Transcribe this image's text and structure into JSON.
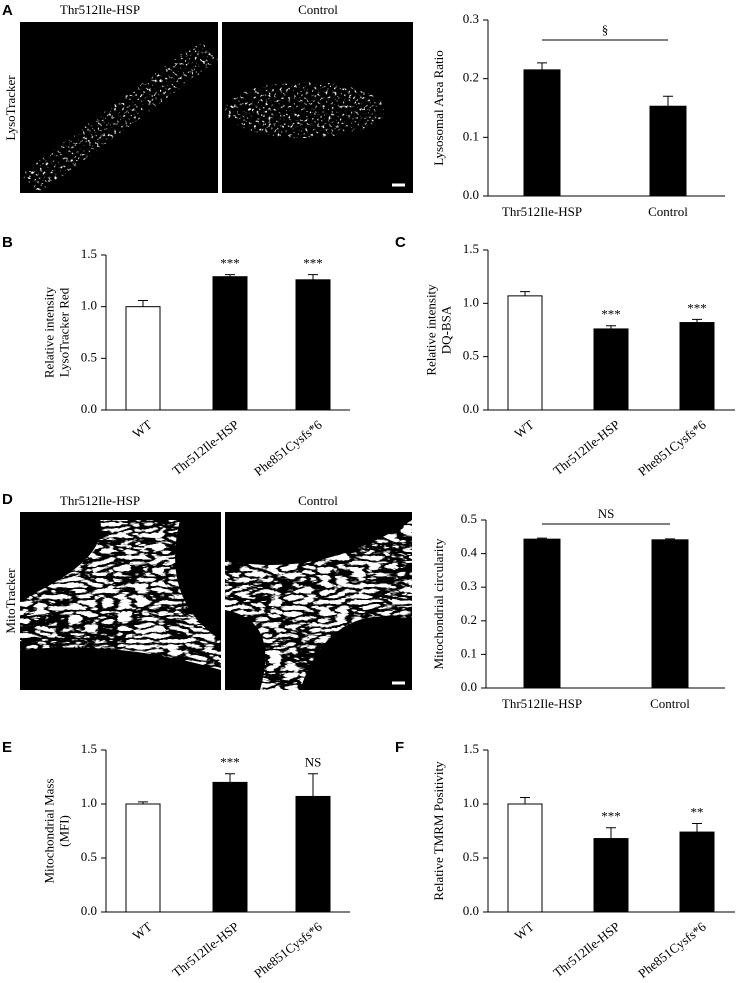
{
  "images": [
    {
      "letter": "A",
      "stain": "LysoTracker",
      "labels": [
        "Thr512Ile-HSP",
        "Control"
      ]
    },
    {
      "letter": "D",
      "stain": "MitoTracker",
      "labels": [
        "Thr512Ile-HSP",
        "Control"
      ]
    }
  ],
  "chart_data": [
    {
      "type": "bar",
      "ylabel": [
        "Lysosomal Area Ratio"
      ],
      "categories": [
        "Thr512Ile-HSP",
        "Control"
      ],
      "values": [
        0.215,
        0.153
      ],
      "errors": [
        0.012,
        0.017
      ],
      "colors": [
        "#000000",
        "#000000"
      ],
      "ylim": [
        0,
        0.3
      ],
      "yticks": [
        {
          "value": 0,
          "label": "0.0"
        },
        0.1,
        0.2,
        0.3
      ],
      "annotation": "§"
    },
    {
      "type": "bar",
      "panel": "B",
      "ylabel": [
        "Relative intensity",
        "LysoTracker Red"
      ],
      "categories": [
        "WT",
        "Thr512Ile-HSP",
        "Phe851Cysfs*6"
      ],
      "values": [
        1.0,
        1.29,
        1.26
      ],
      "errors": [
        0.06,
        0.02,
        0.05
      ],
      "colors": [
        "#ffffff",
        "#000000",
        "#000000"
      ],
      "significance": [
        null,
        "***",
        "***"
      ],
      "ylim": [
        0,
        1.5
      ],
      "yticks": [
        {
          "value": 0,
          "label": "0.0"
        },
        0.5,
        {
          "value": 1,
          "label": "1.0"
        },
        1.5
      ]
    },
    {
      "type": "bar",
      "panel": "C",
      "ylabel": [
        "Relative intensity",
        "DQ-BSA"
      ],
      "categories": [
        "WT",
        "Thr512Ile-HSP",
        "Phe851Cysfs*6"
      ],
      "values": [
        1.07,
        0.76,
        0.82
      ],
      "errors": [
        0.04,
        0.03,
        0.03
      ],
      "colors": [
        "#ffffff",
        "#000000",
        "#000000"
      ],
      "significance": [
        null,
        "***",
        "***"
      ],
      "ylim": [
        0,
        1.5
      ],
      "yticks": [
        {
          "value": 0,
          "label": "0.0"
        },
        0.5,
        {
          "value": 1,
          "label": "1.0"
        },
        1.5
      ]
    },
    {
      "type": "bar",
      "ylabel": [
        "Mitochondrial circularity"
      ],
      "categories": [
        "Thr512Ile-HSP",
        "Control"
      ],
      "values": [
        0.443,
        0.441
      ],
      "errors": [
        0.003,
        0.003
      ],
      "colors": [
        "#000000",
        "#000000"
      ],
      "ylim": [
        0,
        0.5
      ],
      "yticks": [
        {
          "value": 0,
          "label": "0.0"
        },
        0.1,
        0.2,
        0.3,
        0.4,
        0.5
      ],
      "annotation": "NS"
    },
    {
      "type": "bar",
      "panel": "E",
      "ylabel": [
        "Mitochondrial Mass",
        "(MFI)"
      ],
      "categories": [
        "WT",
        "Thr512Ile-HSP",
        "Phe851Cysfs*6"
      ],
      "values": [
        1.0,
        1.2,
        1.07
      ],
      "errors": [
        0.02,
        0.08,
        0.21
      ],
      "colors": [
        "#ffffff",
        "#000000",
        "#000000"
      ],
      "significance": [
        null,
        "***",
        "NS"
      ],
      "ylim": [
        0,
        1.5
      ],
      "yticks": [
        {
          "value": 0,
          "label": "0.0"
        },
        0.5,
        {
          "value": 1,
          "label": "1.0"
        },
        1.5
      ]
    },
    {
      "type": "bar",
      "panel": "F",
      "ylabel": [
        "Relative TMRM Positivity"
      ],
      "categories": [
        "WT",
        "Thr512Ile-HSP",
        "Phe851Cysfs*6"
      ],
      "values": [
        1.0,
        0.68,
        0.74
      ],
      "errors": [
        0.06,
        0.1,
        0.08
      ],
      "colors": [
        "#ffffff",
        "#000000",
        "#000000"
      ],
      "significance": [
        null,
        "***",
        "**"
      ],
      "ylim": [
        0,
        1.5
      ],
      "yticks": [
        {
          "value": 0,
          "label": "0.0"
        },
        0.5,
        {
          "value": 1,
          "label": "1.0"
        },
        1.5
      ]
    }
  ]
}
